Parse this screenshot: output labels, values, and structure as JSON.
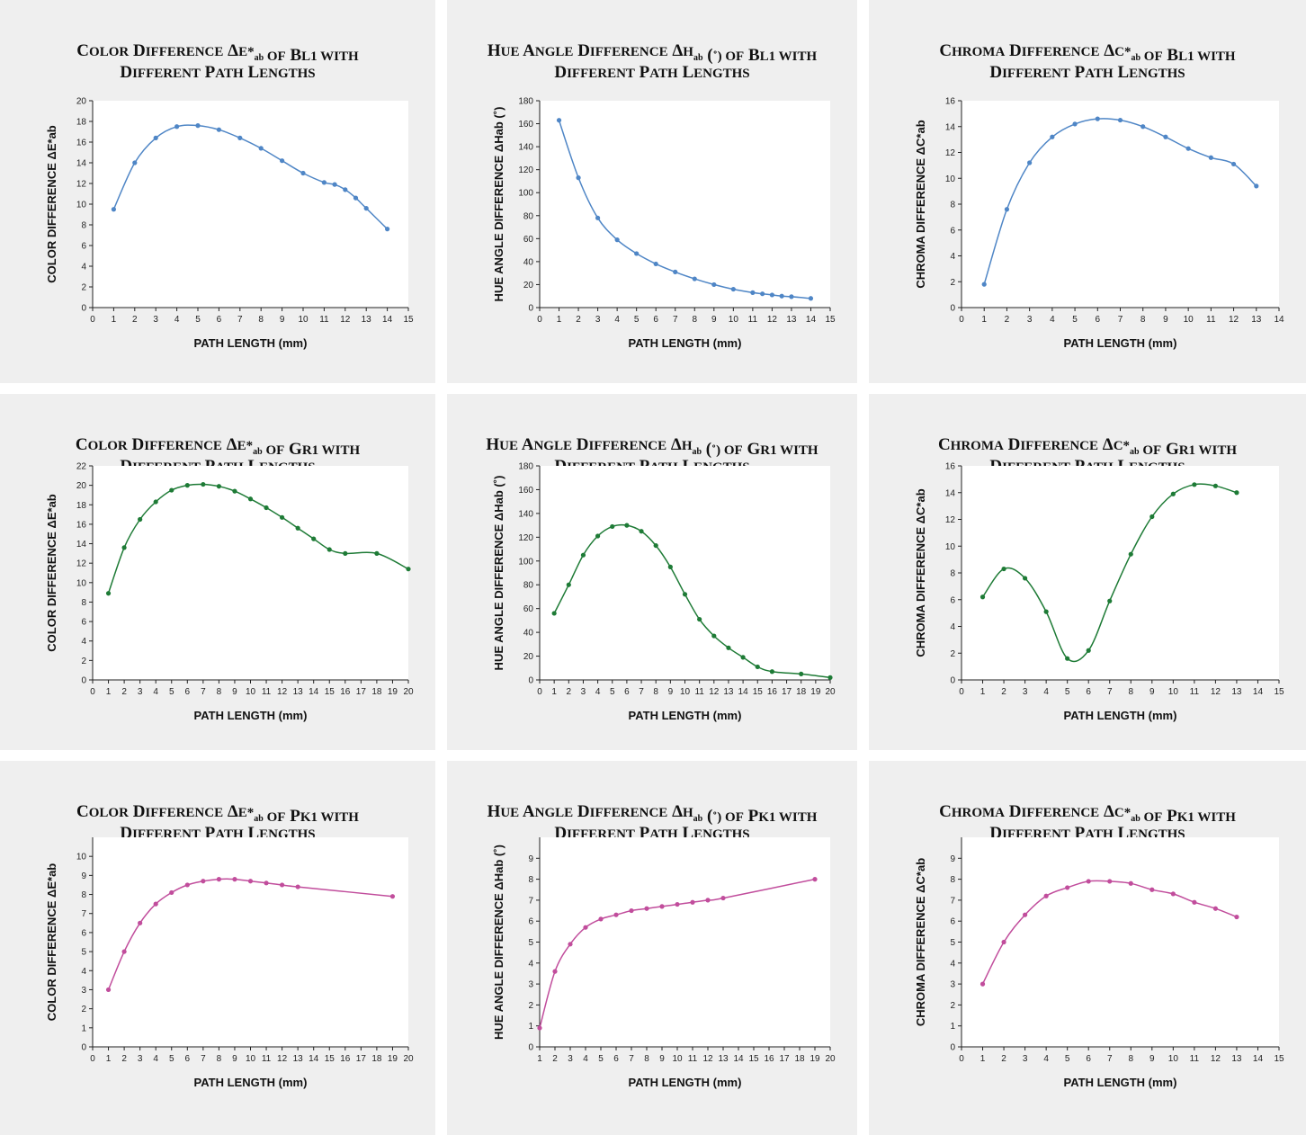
{
  "colors": {
    "bl1": "#4f86c6",
    "gr1": "#1e7b36",
    "pk1": "#c14d9c",
    "panel_bg": "#efefef",
    "plot_bg": "#ffffff"
  },
  "chart_data": [
    {
      "type": "line",
      "row": 0,
      "col": 0,
      "title_line1": "Color Difference ΔE*ab of Bl1 with",
      "title_line2": "Different Path Lengths",
      "xlabel": "PATH LENGTH (mm)",
      "ylabel": "COLOR DIFFERENCE ΔE*ab",
      "xlim": [
        0,
        15
      ],
      "ylim": [
        0,
        20
      ],
      "xstep": 1,
      "ystep": 2,
      "grid": false,
      "series": [
        {
          "x": [
            1,
            2,
            3,
            4,
            5,
            6,
            7,
            8,
            9,
            10,
            11,
            11.5,
            12,
            12.5,
            13,
            14
          ],
          "y": [
            9.5,
            14.0,
            16.4,
            17.5,
            17.6,
            17.2,
            16.4,
            15.4,
            14.2,
            13.0,
            12.1,
            11.9,
            11.4,
            10.6,
            9.6,
            7.6
          ]
        }
      ]
    },
    {
      "type": "line",
      "row": 0,
      "col": 1,
      "title_line1": "Hue Angle Difference ΔHab (˚) of Bl1 with",
      "title_line2": "Different Path Lengths",
      "xlabel": "PATH LENGTH (mm)",
      "ylabel": "HUE ANGLE DIFFERENCE ΔHab (˚)",
      "xlim": [
        0,
        15
      ],
      "ylim": [
        0,
        180
      ],
      "xstep": 1,
      "ystep": 20,
      "grid": false,
      "series": [
        {
          "x": [
            1,
            2,
            3,
            4,
            5,
            6,
            7,
            8,
            9,
            10,
            11,
            11.5,
            12,
            12.5,
            13,
            14
          ],
          "y": [
            163,
            113,
            78,
            59,
            47,
            38,
            31,
            25,
            20,
            16,
            13,
            12,
            11,
            10,
            9.5,
            8
          ]
        }
      ]
    },
    {
      "type": "line",
      "row": 0,
      "col": 2,
      "title_line1": "Chroma Difference ΔC*ab of Bl1 with",
      "title_line2": "Different Path Lengths",
      "xlabel": "PATH LENGTH (mm)",
      "ylabel": "CHROMA DIFFERENCE ΔC*ab",
      "xlim": [
        0,
        14
      ],
      "ylim": [
        0,
        16
      ],
      "xstep": 1,
      "ystep": 2,
      "grid": false,
      "series": [
        {
          "x": [
            1,
            2,
            3,
            4,
            5,
            6,
            7,
            8,
            9,
            10,
            11,
            12,
            13
          ],
          "y": [
            1.8,
            7.6,
            11.2,
            13.2,
            14.2,
            14.6,
            14.5,
            14.0,
            13.2,
            12.3,
            11.6,
            11.1,
            9.4
          ]
        }
      ]
    },
    {
      "type": "line",
      "row": 1,
      "col": 0,
      "title_line1": "Color Difference ΔE*ab of Gr1 with",
      "title_line2": "Different Path Lengths",
      "xlabel": "PATH LENGTH (mm)",
      "ylabel": "COLOR DIFFERENCE ΔE*ab",
      "xlim": [
        0,
        20
      ],
      "ylim": [
        0,
        22
      ],
      "xstep": 1,
      "ystep": 2,
      "grid": false,
      "series": [
        {
          "x": [
            1,
            2,
            3,
            4,
            5,
            6,
            7,
            8,
            9,
            10,
            11,
            12,
            13,
            14,
            15,
            16,
            18,
            20
          ],
          "y": [
            8.9,
            13.6,
            16.5,
            18.3,
            19.5,
            20.0,
            20.1,
            19.9,
            19.4,
            18.6,
            17.7,
            16.7,
            15.6,
            14.5,
            13.4,
            13.0,
            13.0,
            11.4
          ]
        }
      ]
    },
    {
      "type": "line",
      "row": 1,
      "col": 1,
      "title_line1": "Hue Angle Difference ΔHab (˚) of Gr1 with",
      "title_line2": "Different Path Lengths",
      "xlabel": "PATH LENGTH (mm)",
      "ylabel": "HUE ANGLE DIFFERENCE ΔHab (˚)",
      "xlim": [
        0,
        20
      ],
      "ylim": [
        0,
        180
      ],
      "xstep": 1,
      "ystep": 20,
      "grid": false,
      "series": [
        {
          "x": [
            1,
            2,
            3,
            4,
            5,
            6,
            7,
            8,
            9,
            10,
            11,
            12,
            13,
            14,
            15,
            16,
            18,
            20
          ],
          "y": [
            56,
            80,
            105,
            121,
            129,
            130,
            125,
            113,
            95,
            72,
            51,
            37,
            27,
            19,
            11,
            7,
            5,
            2
          ]
        }
      ]
    },
    {
      "type": "line",
      "row": 1,
      "col": 2,
      "title_line1": "Chroma Difference ΔC*ab of Gr1 with",
      "title_line2": "Different Path Lengths",
      "xlabel": "PATH LENGTH (mm)",
      "ylabel": "CHROMA DIFFERENCE ΔC*ab",
      "xlim": [
        0,
        15
      ],
      "ylim": [
        0,
        16
      ],
      "xstep": 1,
      "ystep": 2,
      "grid": false,
      "series": [
        {
          "x": [
            1,
            2,
            3,
            4,
            5,
            6,
            7,
            8,
            9,
            10,
            11,
            12,
            13
          ],
          "y": [
            6.2,
            8.3,
            7.6,
            5.1,
            1.6,
            2.2,
            5.9,
            9.4,
            12.2,
            13.9,
            14.6,
            14.5,
            14.0
          ]
        }
      ]
    },
    {
      "type": "line",
      "row": 2,
      "col": 0,
      "title_line1": "Color Difference ΔE*ab of Pk1 with",
      "title_line2": "Different Path Lengths",
      "xlabel": "PATH LENGTH (mm)",
      "ylabel": "COLOR DIFFERENCE ΔE*ab",
      "xlim": [
        0,
        20
      ],
      "ylim": [
        0,
        11
      ],
      "ymaxlabel": 10,
      "xstep": 1,
      "ystep": 1,
      "grid": false,
      "series": [
        {
          "x": [
            1,
            2,
            3,
            4,
            5,
            6,
            7,
            8,
            9,
            10,
            11,
            12,
            13,
            19
          ],
          "y": [
            3.0,
            5.0,
            6.5,
            7.5,
            8.1,
            8.5,
            8.7,
            8.8,
            8.8,
            8.7,
            8.6,
            8.5,
            8.4,
            7.9
          ]
        }
      ]
    },
    {
      "type": "line",
      "row": 2,
      "col": 1,
      "title_line1": "Hue Angle Difference ΔHab (˚) of Pk1 with",
      "title_line2": "Different Path Lengths",
      "xlabel": "PATH LENGTH (mm)",
      "ylabel": "HUE ANGLE DIFFERENCE ΔHab (˚)",
      "xlim": [
        1,
        20
      ],
      "ylim": [
        0,
        10
      ],
      "ymaxlabel": 9,
      "xstep": 1,
      "ystep": 1,
      "grid": false,
      "series": [
        {
          "x": [
            1,
            2,
            3,
            4,
            5,
            6,
            7,
            8,
            9,
            10,
            11,
            12,
            13,
            19
          ],
          "y": [
            0.9,
            3.6,
            4.9,
            5.7,
            6.1,
            6.3,
            6.5,
            6.6,
            6.7,
            6.8,
            6.9,
            7.0,
            7.1,
            8.0
          ]
        }
      ]
    },
    {
      "type": "line",
      "row": 2,
      "col": 2,
      "title_line1": "Chroma Difference ΔC*ab of Pk1 with",
      "title_line2": "Different Path Lengths",
      "xlabel": "PATH LENGTH (mm)",
      "ylabel": "CHROMA DIFFERENCE ΔC*ab",
      "xlim": [
        0,
        15
      ],
      "ylim": [
        0,
        10
      ],
      "ymaxlabel": 9,
      "xstep": 1,
      "ystep": 1,
      "grid": false,
      "series": [
        {
          "x": [
            1,
            2,
            3,
            4,
            5,
            6,
            7,
            8,
            9,
            10,
            11,
            12,
            13
          ],
          "y": [
            3.0,
            5.0,
            6.3,
            7.2,
            7.6,
            7.9,
            7.9,
            7.8,
            7.5,
            7.3,
            6.9,
            6.6,
            6.2
          ]
        }
      ]
    }
  ]
}
